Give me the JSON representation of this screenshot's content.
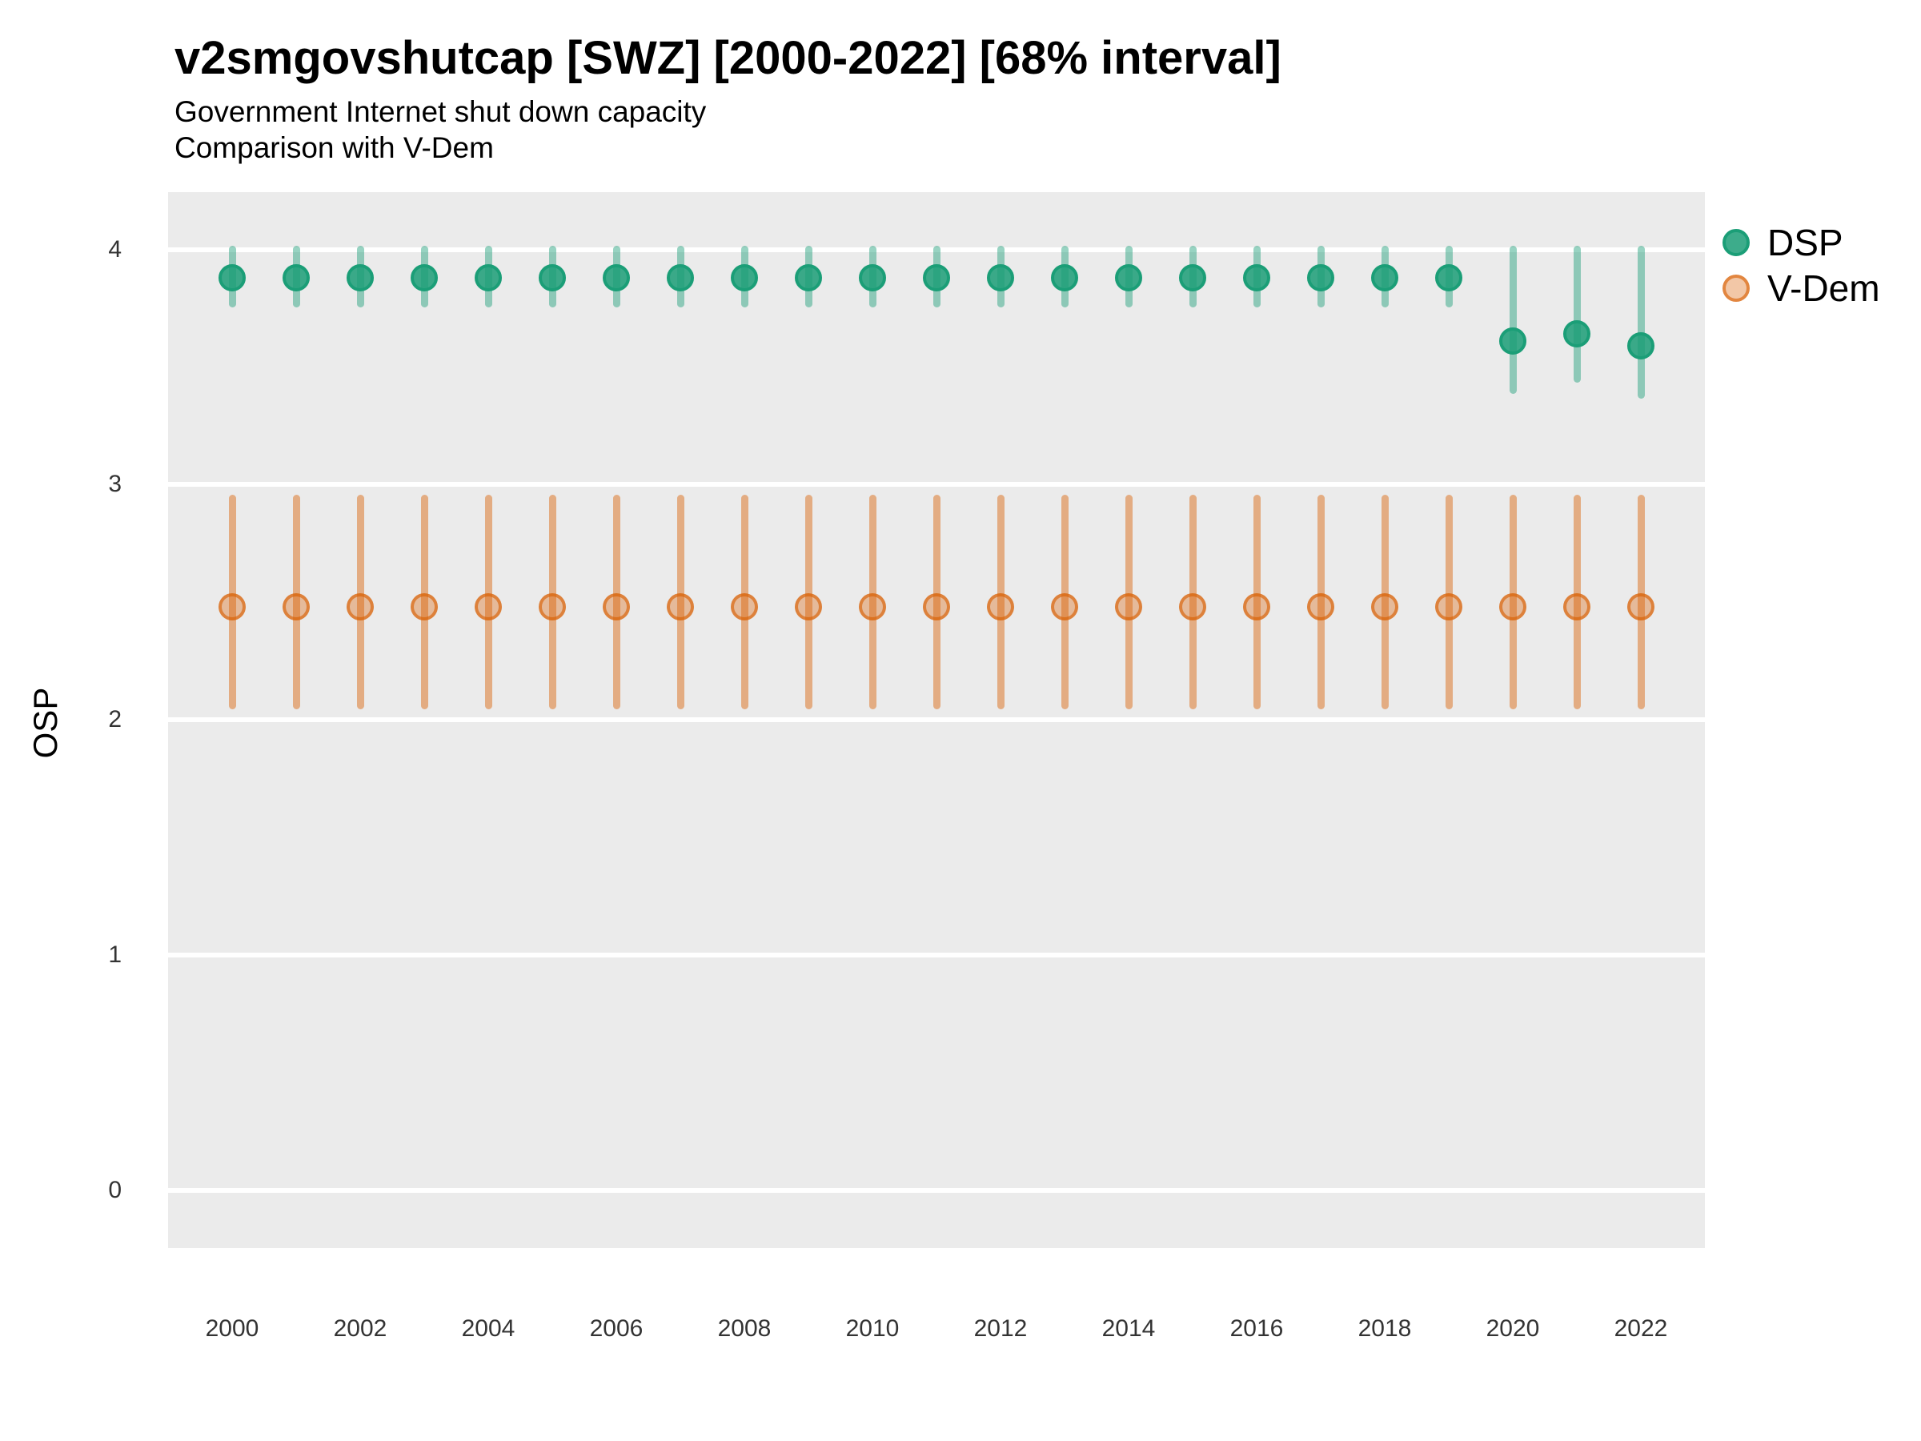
{
  "chart": {
    "title": "v2smgovshutcap [SWZ] [2000-2022] [68% interval]",
    "subtitle1": "Government Internet shut down capacity",
    "subtitle2": "Comparison with V-Dem",
    "ylabel": "OSP"
  },
  "chart_data": {
    "type": "pointrange",
    "title": "v2smgovshutcap [SWZ] [2000-2022] [68% interval]",
    "subtitle": [
      "Government Internet shut down capacity",
      "Comparison with V-Dem"
    ],
    "xlabel": "",
    "ylabel": "OSP",
    "interval": "68%",
    "ylim": [
      -0.25,
      4.24
    ],
    "y_ticks": [
      0,
      1,
      2,
      3,
      4
    ],
    "x_tick_labels": [
      "2000",
      "2002",
      "2004",
      "2006",
      "2008",
      "2010",
      "2012",
      "2014",
      "2016",
      "2018",
      "2020",
      "2022"
    ],
    "grid": "major-horizontal-only",
    "legend_position": "right-top",
    "panel_background": "#ebebeb",
    "gridline_color": "#ffffff",
    "point_format": [
      "year",
      "est",
      "lo",
      "hi"
    ],
    "series": [
      {
        "name": "DSP",
        "color": "#1b9e77",
        "points": [
          [
            2000,
            3.88,
            3.77,
            4.0
          ],
          [
            2001,
            3.88,
            3.77,
            4.0
          ],
          [
            2002,
            3.88,
            3.77,
            4.0
          ],
          [
            2003,
            3.88,
            3.77,
            4.0
          ],
          [
            2004,
            3.88,
            3.77,
            4.0
          ],
          [
            2005,
            3.88,
            3.77,
            4.0
          ],
          [
            2006,
            3.88,
            3.77,
            4.0
          ],
          [
            2007,
            3.88,
            3.77,
            4.0
          ],
          [
            2008,
            3.88,
            3.77,
            4.0
          ],
          [
            2009,
            3.88,
            3.77,
            4.0
          ],
          [
            2010,
            3.88,
            3.77,
            4.0
          ],
          [
            2011,
            3.88,
            3.77,
            4.0
          ],
          [
            2012,
            3.88,
            3.77,
            4.0
          ],
          [
            2013,
            3.88,
            3.77,
            4.0
          ],
          [
            2014,
            3.88,
            3.77,
            4.0
          ],
          [
            2015,
            3.88,
            3.77,
            4.0
          ],
          [
            2016,
            3.88,
            3.77,
            4.0
          ],
          [
            2017,
            3.88,
            3.77,
            4.0
          ],
          [
            2018,
            3.88,
            3.77,
            4.0
          ],
          [
            2019,
            3.88,
            3.77,
            4.0
          ],
          [
            2020,
            3.61,
            3.4,
            4.0
          ],
          [
            2021,
            3.64,
            3.45,
            4.0
          ],
          [
            2022,
            3.59,
            3.38,
            4.0
          ]
        ]
      },
      {
        "name": "V-Dem",
        "color": "#d95f02",
        "points": [
          [
            2000,
            2.48,
            2.06,
            2.94
          ],
          [
            2001,
            2.48,
            2.06,
            2.94
          ],
          [
            2002,
            2.48,
            2.06,
            2.94
          ],
          [
            2003,
            2.48,
            2.06,
            2.94
          ],
          [
            2004,
            2.48,
            2.06,
            2.94
          ],
          [
            2005,
            2.48,
            2.06,
            2.94
          ],
          [
            2006,
            2.48,
            2.06,
            2.94
          ],
          [
            2007,
            2.48,
            2.06,
            2.94
          ],
          [
            2008,
            2.48,
            2.06,
            2.94
          ],
          [
            2009,
            2.48,
            2.06,
            2.94
          ],
          [
            2010,
            2.48,
            2.06,
            2.94
          ],
          [
            2011,
            2.48,
            2.06,
            2.94
          ],
          [
            2012,
            2.48,
            2.06,
            2.94
          ],
          [
            2013,
            2.48,
            2.06,
            2.94
          ],
          [
            2014,
            2.48,
            2.06,
            2.94
          ],
          [
            2015,
            2.48,
            2.06,
            2.94
          ],
          [
            2016,
            2.48,
            2.06,
            2.94
          ],
          [
            2017,
            2.48,
            2.06,
            2.94
          ],
          [
            2018,
            2.48,
            2.06,
            2.94
          ],
          [
            2019,
            2.48,
            2.06,
            2.94
          ],
          [
            2020,
            2.48,
            2.06,
            2.94
          ],
          [
            2021,
            2.48,
            2.06,
            2.94
          ],
          [
            2022,
            2.48,
            2.06,
            2.94
          ]
        ]
      }
    ]
  }
}
